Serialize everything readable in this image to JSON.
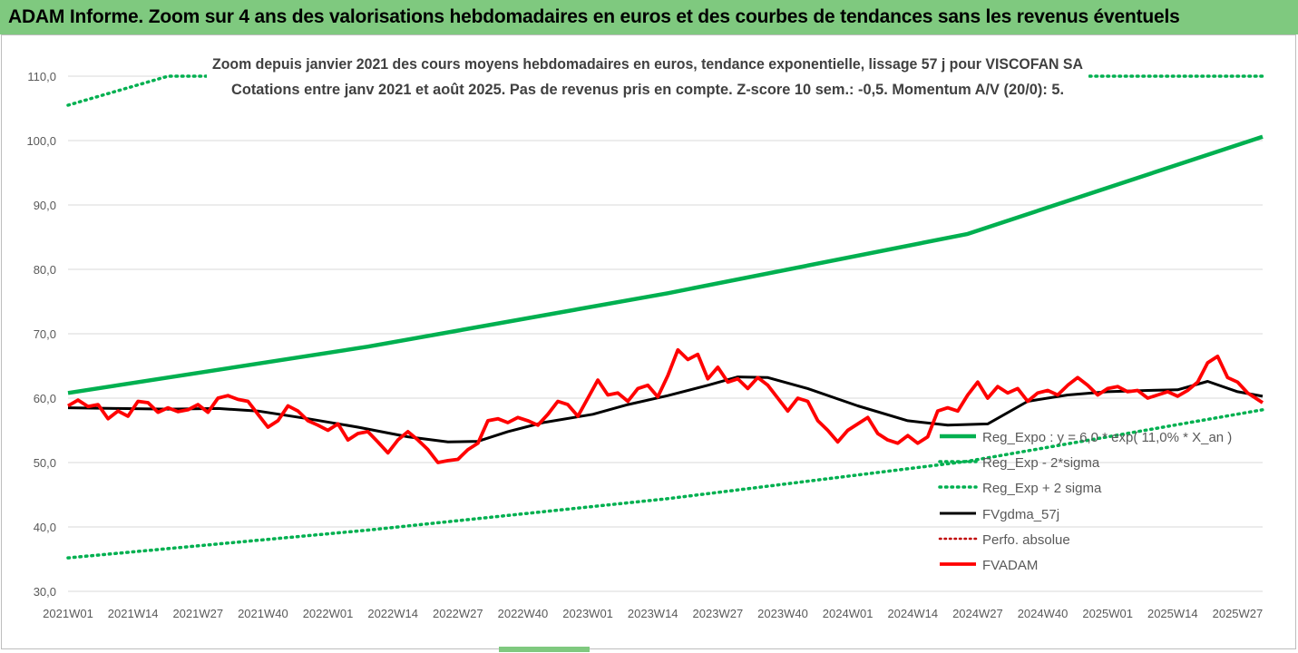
{
  "banner": {
    "title": "ADAM Informe. Zoom sur 4 ans des valorisations hebdomadaires en euros et des courbes de tendances sans les revenus éventuels"
  },
  "colors": {
    "banner_bg": "#7fc97f",
    "reg_expo": "#00b050",
    "fvgdma": "#000000",
    "fvadam": "#ff0000",
    "perfo": "#c00000"
  },
  "chart_data": {
    "type": "line",
    "title": "Zoom depuis janvier 2021 des cours moyens hebdomadaires en euros, tendance exponentielle, lissage 57 j pour VISCOFAN SA",
    "subtitle": "Cotations entre janv 2021 et août 2025. Pas de revenus pris en compte. Z-score 10 sem.: -0,5. Momentum A/V (20/0): 5.",
    "xlabel": "",
    "ylabel": "",
    "ylim": [
      30,
      110
    ],
    "y_ticks": [
      "30,0",
      "40,0",
      "50,0",
      "60,0",
      "70,0",
      "80,0",
      "90,0",
      "100,0",
      "110,0"
    ],
    "x_ticks": [
      "2021W01",
      "2021W14",
      "2021W27",
      "2021W40",
      "2022W01",
      "2022W14",
      "2022W27",
      "2022W40",
      "2023W01",
      "2023W14",
      "2023W27",
      "2023W40",
      "2024W01",
      "2024W14",
      "2024W27",
      "2024W40",
      "2025W01",
      "2025W14",
      "2025W27"
    ],
    "week_count": 240,
    "grid": true,
    "legend_position": "right",
    "series": [
      {
        "name": "Reg_Expo : y = 6,0 * exp( 11,0% * X_an )",
        "style": "solid-thick",
        "x": [
          0,
          60,
          120,
          180,
          239
        ],
        "y": [
          60.8,
          68.0,
          76.3,
          85.5,
          100.6
        ]
      },
      {
        "name": "Reg_Exp - 2*sigma",
        "style": "dotted",
        "x": [
          0,
          60,
          120,
          180,
          239
        ],
        "y": [
          35.2,
          39.5,
          44.4,
          50.2,
          58.2
        ]
      },
      {
        "name": "Reg_Exp + 2 sigma",
        "style": "dotted",
        "x": [
          0,
          20,
          239
        ],
        "y": [
          105.5,
          110.0,
          110.0
        ]
      },
      {
        "name": "FVgdma_57j",
        "style": "solid-black",
        "x": [
          0,
          10,
          20,
          30,
          38,
          48,
          58,
          68,
          76,
          82,
          88,
          95,
          105,
          112,
          120,
          128,
          134,
          140,
          148,
          158,
          168,
          176,
          184,
          192,
          200,
          208,
          216,
          222,
          228,
          234,
          239
        ],
        "y": [
          58.5,
          58.4,
          58.3,
          58.4,
          58.0,
          56.8,
          55.5,
          54.0,
          53.2,
          53.3,
          54.8,
          56.2,
          57.5,
          59.0,
          60.4,
          62.0,
          63.3,
          63.2,
          61.5,
          58.8,
          56.5,
          55.8,
          56.0,
          59.5,
          60.5,
          61.0,
          61.2,
          61.3,
          62.6,
          61.0,
          60.3
        ]
      },
      {
        "name": "Perfo. absolue",
        "style": "dotted-red",
        "x": [],
        "y": []
      },
      {
        "name": "FVADAM",
        "style": "solid-red-thick",
        "x": [
          0,
          2,
          4,
          6,
          8,
          10,
          12,
          14,
          16,
          18,
          20,
          22,
          24,
          26,
          28,
          30,
          32,
          34,
          36,
          38,
          40,
          42,
          44,
          46,
          48,
          50,
          52,
          54,
          56,
          58,
          60,
          62,
          64,
          66,
          68,
          70,
          72,
          74,
          76,
          78,
          80,
          82,
          84,
          86,
          88,
          90,
          92,
          94,
          96,
          98,
          100,
          102,
          104,
          106,
          108,
          110,
          112,
          114,
          116,
          118,
          120,
          122,
          124,
          126,
          128,
          130,
          132,
          134,
          136,
          138,
          140,
          142,
          144,
          146,
          148,
          150,
          152,
          154,
          156,
          158,
          160,
          162,
          164,
          166,
          168,
          170,
          172,
          174,
          176,
          178,
          180,
          182,
          184,
          186,
          188,
          190,
          192,
          194,
          196,
          198,
          200,
          202,
          204,
          206,
          208,
          210,
          212,
          214,
          216,
          218,
          220,
          222,
          224,
          226,
          228,
          230,
          232,
          234,
          236,
          239
        ],
        "y": [
          58.8,
          59.7,
          58.7,
          59.0,
          56.8,
          58.0,
          57.2,
          59.5,
          59.3,
          57.8,
          58.5,
          57.9,
          58.2,
          59.0,
          57.8,
          60.0,
          60.4,
          59.8,
          59.5,
          57.5,
          55.5,
          56.5,
          58.8,
          58.0,
          56.5,
          55.8,
          55.0,
          56.0,
          53.5,
          54.5,
          54.8,
          53.2,
          51.5,
          53.5,
          54.8,
          53.5,
          52.0,
          50.0,
          50.3,
          50.5,
          52.0,
          53.0,
          56.5,
          56.8,
          56.2,
          57.0,
          56.5,
          55.8,
          57.5,
          59.5,
          59.0,
          57.2,
          60.0,
          62.8,
          60.5,
          60.8,
          59.5,
          61.5,
          62.0,
          60.2,
          63.5,
          67.5,
          66.0,
          66.8,
          63.0,
          64.8,
          62.5,
          63.0,
          61.5,
          63.2,
          62.0,
          60.0,
          58.0,
          60.0,
          59.5,
          56.5,
          55.0,
          53.2,
          55.0,
          56.0,
          57.0,
          54.5,
          53.5,
          53.0,
          54.2,
          53.0,
          54.0,
          58.0,
          58.5,
          58.0,
          60.5,
          62.5,
          60.0,
          61.8,
          60.8,
          61.5,
          59.5,
          60.8,
          61.2,
          60.5,
          62.0,
          63.2,
          62.0,
          60.5,
          61.5,
          61.8,
          61.0,
          61.2,
          60.0,
          60.5,
          61.0,
          60.3,
          61.2,
          62.5,
          65.5,
          66.5,
          63.2,
          62.5,
          60.8,
          59.3
        ]
      }
    ]
  }
}
